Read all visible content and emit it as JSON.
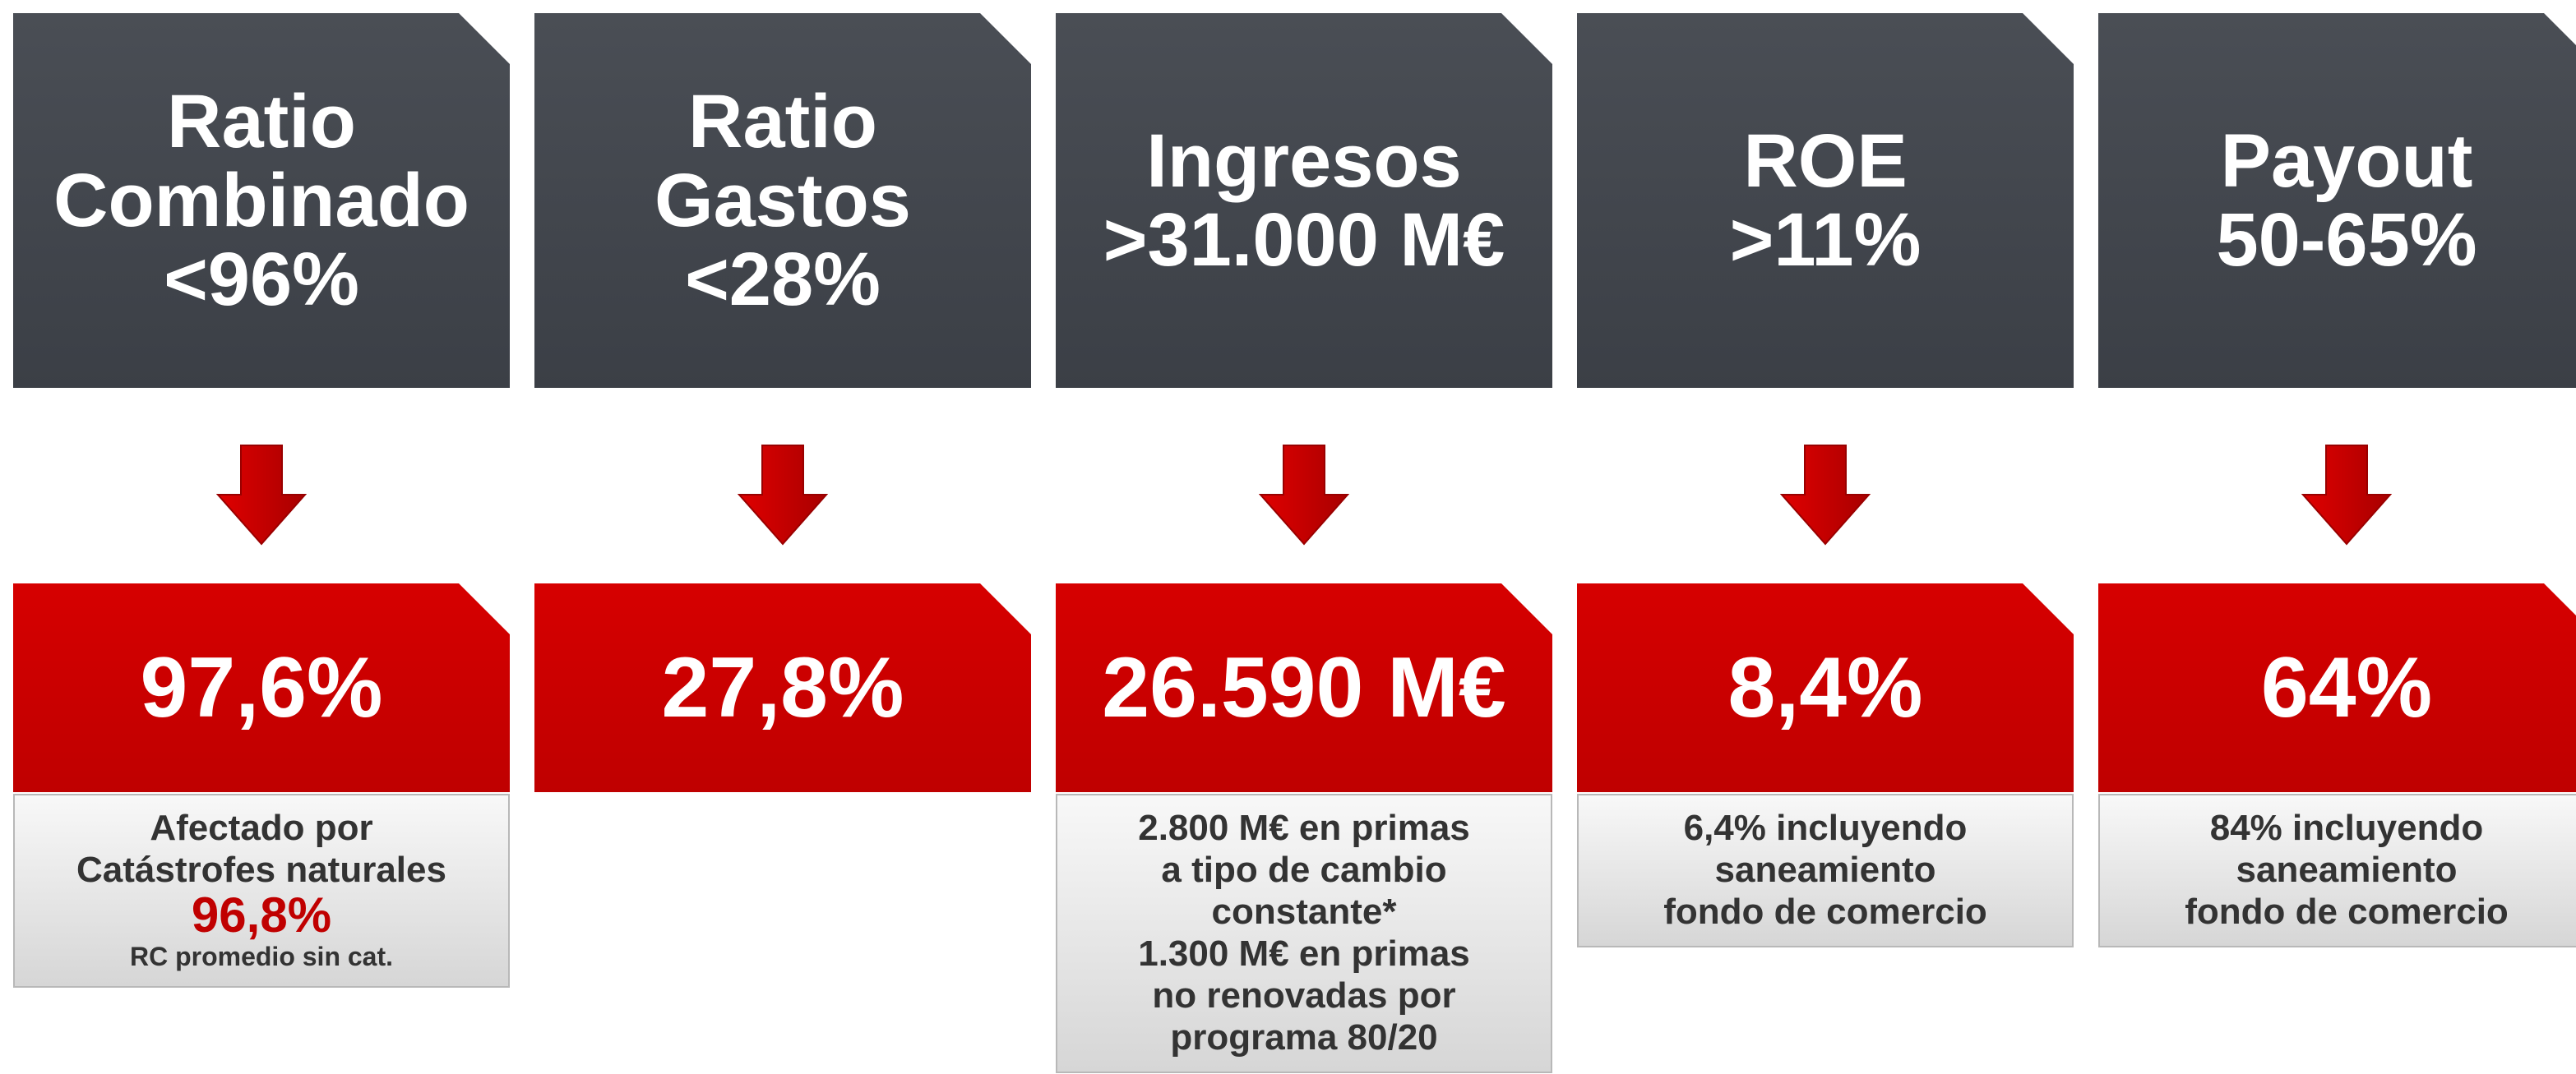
{
  "columns": [
    {
      "target": [
        "Ratio",
        "Combinado",
        "<96%"
      ],
      "result": "97,6%",
      "notes": [
        "Afectado por",
        "Catástrofes naturales"
      ],
      "highlight": "96,8%",
      "footnote": "RC promedio sin cat."
    },
    {
      "target": [
        "Ratio",
        "Gastos",
        "<28%"
      ],
      "result": "27,8%"
    },
    {
      "target": [
        "Ingresos",
        ">31.000 M€"
      ],
      "result": "26.590 M€",
      "notes": [
        "2.800 M€ en primas",
        "a tipo de cambio",
        "constante*",
        "1.300 M€ en primas",
        "no renovadas por",
        "programa 80/20"
      ]
    },
    {
      "target": [
        "ROE",
        ">11%"
      ],
      "result": "8,4%",
      "notes": [
        "6,4% incluyendo",
        "saneamiento",
        "fondo de comercio"
      ]
    },
    {
      "target": [
        "Payout",
        "50-65%"
      ],
      "result": "64%",
      "notes": [
        "84% incluyendo",
        "saneamiento",
        "fondo de comercio"
      ]
    }
  ]
}
